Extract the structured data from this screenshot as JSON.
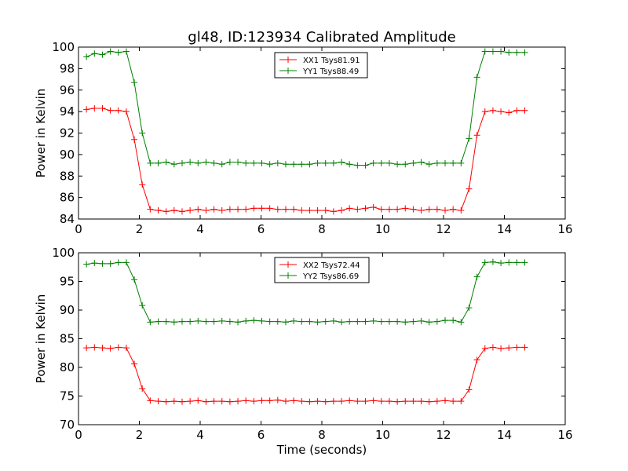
{
  "figure": {
    "title": "gl48, ID:123934 Calibrated Amplitude",
    "xlabel": "Time (seconds)"
  },
  "chart_data": [
    {
      "type": "line",
      "title": "gl48, ID:123934 Calibrated Amplitude",
      "xlabel": "",
      "ylabel": "Power in Kelvin",
      "xlim": [
        0,
        16
      ],
      "ylim": [
        84,
        100
      ],
      "xticks": [
        0,
        2,
        4,
        6,
        8,
        10,
        12,
        14,
        16
      ],
      "yticks": [
        84,
        86,
        88,
        90,
        92,
        94,
        96,
        98,
        100
      ],
      "legend_position": "top-center",
      "x": [
        0.262,
        0.524,
        0.786,
        1.048,
        1.31,
        1.572,
        1.834,
        2.096,
        2.358,
        2.62,
        2.882,
        3.144,
        3.406,
        3.668,
        3.93,
        4.192,
        4.454,
        4.716,
        4.978,
        5.24,
        5.502,
        5.764,
        6.026,
        6.288,
        6.55,
        6.812,
        7.074,
        7.336,
        7.598,
        7.86,
        8.122,
        8.384,
        8.646,
        8.908,
        9.17,
        9.432,
        9.694,
        9.956,
        10.218,
        10.48,
        10.742,
        11.004,
        11.266,
        11.528,
        11.79,
        12.052,
        12.314,
        12.576,
        12.838,
        13.1,
        13.362,
        13.624,
        13.886,
        14.148,
        14.41,
        14.672
      ],
      "series": [
        {
          "name": "XX1 Tsys81.91",
          "color": "#ff0000",
          "values": [
            94.2,
            94.3,
            94.3,
            94.1,
            94.1,
            94.0,
            91.4,
            87.2,
            84.9,
            84.8,
            84.7,
            84.8,
            84.7,
            84.8,
            84.9,
            84.8,
            84.9,
            84.8,
            84.9,
            84.9,
            84.9,
            85.0,
            85.0,
            85.0,
            84.9,
            84.9,
            84.9,
            84.8,
            84.8,
            84.8,
            84.8,
            84.7,
            84.8,
            85.0,
            84.9,
            85.0,
            85.1,
            84.9,
            84.9,
            84.9,
            85.0,
            84.9,
            84.8,
            84.9,
            84.9,
            84.8,
            84.9,
            84.8,
            86.8,
            91.8,
            94.0,
            94.1,
            94.0,
            93.9,
            94.1,
            94.1
          ]
        },
        {
          "name": "YY1 Tsys88.49",
          "color": "#008000",
          "values": [
            99.1,
            99.4,
            99.3,
            99.6,
            99.5,
            99.6,
            96.7,
            92.0,
            89.2,
            89.2,
            89.3,
            89.1,
            89.2,
            89.3,
            89.2,
            89.3,
            89.2,
            89.1,
            89.3,
            89.3,
            89.2,
            89.2,
            89.2,
            89.1,
            89.2,
            89.1,
            89.1,
            89.1,
            89.1,
            89.2,
            89.2,
            89.2,
            89.3,
            89.1,
            89.0,
            89.0,
            89.2,
            89.2,
            89.2,
            89.1,
            89.1,
            89.2,
            89.3,
            89.1,
            89.2,
            89.2,
            89.2,
            89.2,
            91.5,
            97.2,
            99.6,
            99.6,
            99.6,
            99.5,
            99.5,
            99.5
          ]
        }
      ]
    },
    {
      "type": "line",
      "title": "",
      "xlabel": "Time (seconds)",
      "ylabel": "Power in Kelvin",
      "xlim": [
        0,
        16
      ],
      "ylim": [
        70,
        100
      ],
      "xticks": [
        0,
        2,
        4,
        6,
        8,
        10,
        12,
        14,
        16
      ],
      "yticks": [
        70,
        75,
        80,
        85,
        90,
        95,
        100
      ],
      "legend_position": "top-center",
      "x": [
        0.262,
        0.524,
        0.786,
        1.048,
        1.31,
        1.572,
        1.834,
        2.096,
        2.358,
        2.62,
        2.882,
        3.144,
        3.406,
        3.668,
        3.93,
        4.192,
        4.454,
        4.716,
        4.978,
        5.24,
        5.502,
        5.764,
        6.026,
        6.288,
        6.55,
        6.812,
        7.074,
        7.336,
        7.598,
        7.86,
        8.122,
        8.384,
        8.646,
        8.908,
        9.17,
        9.432,
        9.694,
        9.956,
        10.218,
        10.48,
        10.742,
        11.004,
        11.266,
        11.528,
        11.79,
        12.052,
        12.314,
        12.576,
        12.838,
        13.1,
        13.362,
        13.624,
        13.886,
        14.148,
        14.41,
        14.672
      ],
      "series": [
        {
          "name": "XX2 Tsys72.44",
          "color": "#ff0000",
          "values": [
            83.4,
            83.5,
            83.4,
            83.3,
            83.5,
            83.4,
            80.6,
            76.3,
            74.2,
            74.1,
            74.0,
            74.1,
            74.0,
            74.1,
            74.2,
            74.0,
            74.1,
            74.1,
            74.0,
            74.1,
            74.2,
            74.1,
            74.2,
            74.2,
            74.3,
            74.1,
            74.2,
            74.1,
            74.0,
            74.1,
            74.0,
            74.1,
            74.1,
            74.2,
            74.1,
            74.1,
            74.2,
            74.1,
            74.1,
            74.0,
            74.1,
            74.1,
            74.1,
            74.0,
            74.1,
            74.2,
            74.1,
            74.1,
            76.1,
            81.3,
            83.3,
            83.5,
            83.3,
            83.4,
            83.5,
            83.5
          ]
        },
        {
          "name": "YY2 Tsys86.69",
          "color": "#008000",
          "values": [
            98.0,
            98.2,
            98.1,
            98.1,
            98.3,
            98.3,
            95.3,
            90.8,
            87.9,
            88.0,
            88.0,
            87.9,
            88.0,
            88.0,
            88.1,
            88.0,
            88.0,
            88.1,
            88.0,
            87.9,
            88.1,
            88.2,
            88.1,
            88.0,
            88.0,
            87.9,
            88.1,
            88.0,
            88.0,
            87.9,
            88.0,
            88.1,
            87.9,
            88.0,
            88.0,
            88.0,
            88.1,
            88.0,
            88.0,
            88.0,
            87.9,
            88.0,
            88.1,
            87.9,
            88.0,
            88.2,
            88.2,
            87.9,
            90.4,
            95.8,
            98.3,
            98.4,
            98.2,
            98.3,
            98.3,
            98.3
          ]
        }
      ]
    }
  ]
}
